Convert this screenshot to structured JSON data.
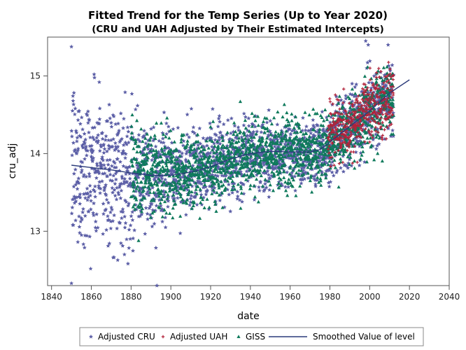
{
  "chart_data": {
    "type": "scatter",
    "title": "Fitted Trend for the Temp Series (Up to Year 2020)",
    "subtitle": "(CRU and UAH Adjusted by Their Estimated Intercepts)",
    "xlabel": "date",
    "ylabel": "cru_adj",
    "xlim": [
      1838,
      2040
    ],
    "ylim": [
      12.3,
      15.5
    ],
    "xticks": [
      1840,
      1860,
      1880,
      1900,
      1920,
      1940,
      1960,
      1980,
      2000,
      2020,
      2040
    ],
    "yticks": [
      13,
      14,
      15
    ],
    "grid": false,
    "legend_position": "bottom",
    "series": [
      {
        "name": "Adjusted CRU",
        "marker": "star",
        "color": "#5b5ea6",
        "x_range": [
          1850,
          2012
        ],
        "monthly_scatter": true,
        "trend_points": [
          [
            1850,
            13.85
          ],
          [
            1880,
            13.72
          ],
          [
            1900,
            13.72
          ],
          [
            1920,
            13.84
          ],
          [
            1940,
            14.0
          ],
          [
            1960,
            14.0
          ],
          [
            1980,
            14.1
          ],
          [
            2000,
            14.55
          ],
          [
            2012,
            14.75
          ]
        ],
        "spread_points": [
          [
            1850,
            0.55
          ],
          [
            1880,
            0.4
          ],
          [
            1900,
            0.28
          ],
          [
            1920,
            0.25
          ],
          [
            1960,
            0.22
          ],
          [
            2012,
            0.25
          ]
        ],
        "notable_points": [
          [
            1850,
            12.33
          ],
          [
            1893,
            12.3
          ],
          [
            1998,
            15.45
          ],
          [
            1864,
            14.92
          ],
          [
            1869,
            14.63
          ],
          [
            1877,
            14.79
          ]
        ]
      },
      {
        "name": "Adjusted UAH",
        "marker": "plus",
        "color": "#b2223a",
        "x_range": [
          1979,
          2012
        ],
        "monthly_scatter": true,
        "trend_points": [
          [
            1979,
            14.25
          ],
          [
            1990,
            14.3
          ],
          [
            2000,
            14.6
          ],
          [
            2012,
            14.72
          ]
        ],
        "spread_points": [
          [
            1979,
            0.18
          ],
          [
            2012,
            0.22
          ]
        ]
      },
      {
        "name": "GISS",
        "marker": "triangle",
        "color": "#0f7a5c",
        "x_range": [
          1880,
          2012
        ],
        "monthly_scatter": true,
        "trend_points": [
          [
            1880,
            13.75
          ],
          [
            1900,
            13.72
          ],
          [
            1920,
            13.82
          ],
          [
            1940,
            14.0
          ],
          [
            1960,
            14.0
          ],
          [
            1980,
            14.1
          ],
          [
            2000,
            14.55
          ],
          [
            2012,
            14.75
          ]
        ],
        "spread_points": [
          [
            1880,
            0.3
          ],
          [
            1920,
            0.22
          ],
          [
            2012,
            0.22
          ]
        ]
      },
      {
        "name": "Smoothed Value of level",
        "marker": "line",
        "color": "#2a3a7a",
        "x": [
          1850,
          1860,
          1870,
          1880,
          1890,
          1900,
          1910,
          1920,
          1930,
          1940,
          1950,
          1960,
          1970,
          1975,
          1980,
          1990,
          2000,
          2010,
          2020
        ],
        "values": [
          13.85,
          13.82,
          13.79,
          13.75,
          13.72,
          13.72,
          13.76,
          13.83,
          13.93,
          14.0,
          14.03,
          14.02,
          14.02,
          14.05,
          14.15,
          14.35,
          14.55,
          14.78,
          14.95
        ]
      }
    ]
  }
}
